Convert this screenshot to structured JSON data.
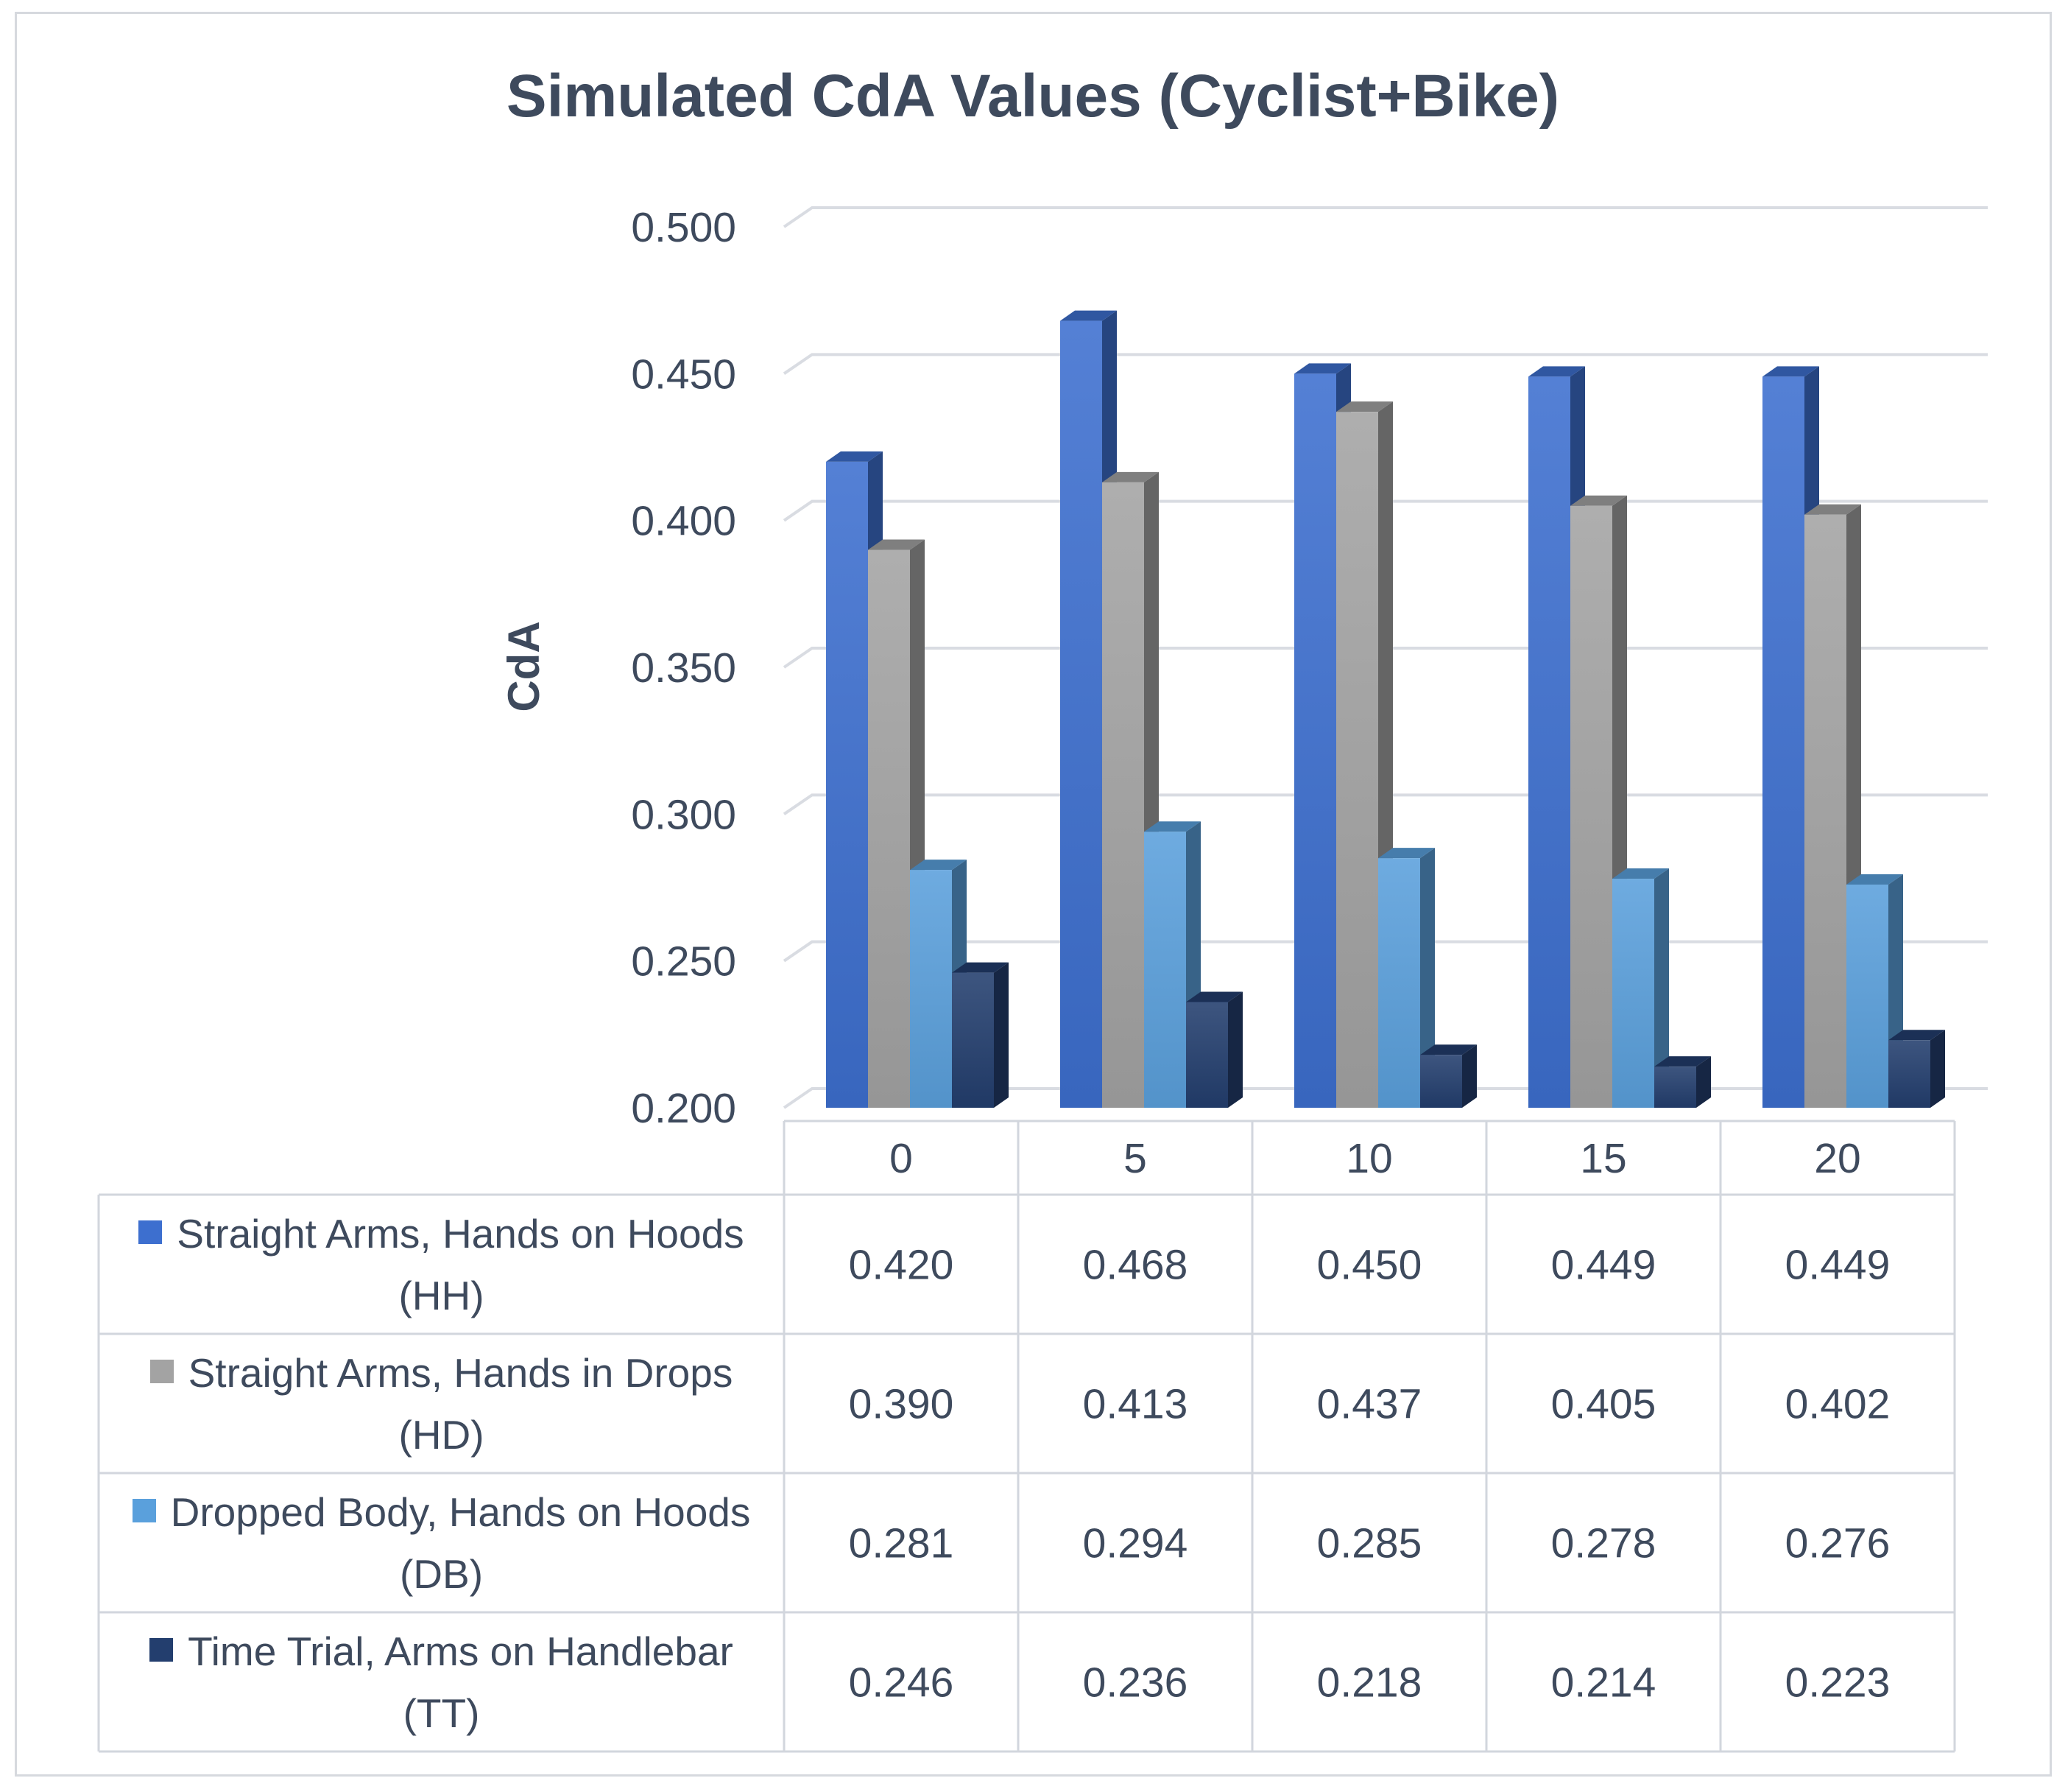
{
  "chart_data": {
    "type": "bar",
    "title": "Simulated CdA Values (Cyclist+Bike)",
    "xlabel": "",
    "ylabel": "CdA",
    "ylim": [
      0.2,
      0.5
    ],
    "yticks": [
      "0.500",
      "0.450",
      "0.400",
      "0.350",
      "0.300",
      "0.250",
      "0.200"
    ],
    "categories": [
      "0",
      "5",
      "10",
      "15",
      "20"
    ],
    "grid": true,
    "legend": "data-table-below",
    "series": [
      {
        "name": "Straight Arms, Hands on Hoods (HH)",
        "color": "#3d6fcf",
        "values": [
          0.42,
          0.468,
          0.45,
          0.449,
          0.449
        ],
        "labels": [
          "0.420",
          "0.468",
          "0.450",
          "0.449",
          "0.449"
        ]
      },
      {
        "name": "Straight Arms, Hands in Drops (HD)",
        "color": "#a3a3a3",
        "values": [
          0.39,
          0.413,
          0.437,
          0.405,
          0.402
        ],
        "labels": [
          "0.390",
          "0.413",
          "0.437",
          "0.405",
          "0.402"
        ]
      },
      {
        "name": "Dropped Body, Hands on Hoods (DB)",
        "color": "#5aa0dc",
        "values": [
          0.281,
          0.294,
          0.285,
          0.278,
          0.276
        ],
        "labels": [
          "0.281",
          "0.294",
          "0.285",
          "0.278",
          "0.276"
        ]
      },
      {
        "name": "Time Trial, Arms on Handlebar (TT)",
        "color": "#233e6e",
        "values": [
          0.246,
          0.236,
          0.218,
          0.214,
          0.223
        ],
        "labels": [
          "0.246",
          "0.236",
          "0.218",
          "0.214",
          "0.223"
        ]
      }
    ]
  }
}
